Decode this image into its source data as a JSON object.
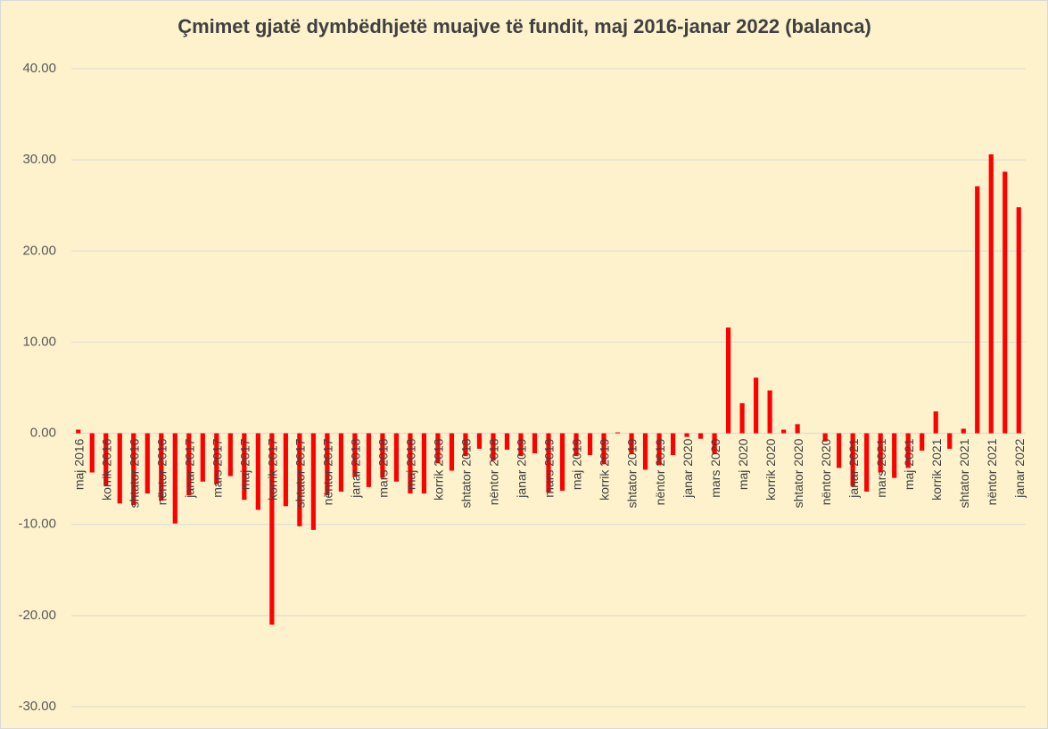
{
  "chart_data": {
    "type": "bar",
    "title": "Çmimet gjatë dymbëdhjetë muajve të fundit, maj 2016-janar 2022 (balanca)",
    "categories": [
      "maj 2016",
      null,
      "korrik 2016",
      null,
      "shtator 2016",
      null,
      "nëntor 2016",
      null,
      "janar 2017",
      null,
      "mars 2017",
      null,
      "maj 2017",
      null,
      "korrik 2017",
      null,
      "shtator 2017",
      null,
      "nëntor 2017",
      null,
      "janar 2018",
      null,
      "mars 2018",
      null,
      "maj 2018",
      null,
      "korrik 2018",
      null,
      "shtator 2018",
      null,
      "nëntor 2018",
      null,
      "janar 2019",
      null,
      "mars 2019",
      null,
      "maj 2019",
      null,
      "korrik 2019",
      null,
      "shtator 2019",
      null,
      "nëntor 2019",
      null,
      "janar 2020",
      null,
      "mars 2020",
      null,
      "maj 2020",
      null,
      "korrik 2020",
      null,
      "shtator 2020",
      null,
      "nëntor 2020",
      null,
      "janar 2021",
      null,
      "mars 2021",
      null,
      "maj 2021",
      null,
      "korrik 2021",
      null,
      "shtator 2021",
      null,
      "nëntor 2021",
      null,
      "janar 2022"
    ],
    "values": [
      0.4,
      -4.3,
      -5.8,
      -7.7,
      -7.9,
      -6.6,
      -7.4,
      -9.9,
      -6.8,
      -5.3,
      -5.6,
      -4.7,
      -7.3,
      -8.4,
      -21.0,
      -8.0,
      -10.2,
      -10.6,
      -6.8,
      -6.4,
      -4.8,
      -5.9,
      -4.9,
      -5.3,
      -6.6,
      -6.6,
      -3.3,
      -4.1,
      -2.5,
      -1.7,
      -3.0,
      -1.8,
      -2.5,
      -2.2,
      -6.5,
      -6.3,
      -2.5,
      -2.4,
      -3.4,
      0.1,
      -2.3,
      -4.0,
      -3.5,
      -2.4,
      -0.4,
      -0.6,
      -2.3,
      11.6,
      3.3,
      6.1,
      4.7,
      0.4,
      1.0,
      0,
      -0.9,
      -3.8,
      -5.8,
      -6.4,
      -4.3,
      -4.9,
      -3.8,
      -1.9,
      2.4,
      -1.7,
      0.5,
      27.1,
      30.6,
      28.7,
      24.8
    ],
    "color": "#ff0000",
    "ylim": [
      -30,
      40
    ],
    "yticks": [
      {
        "value": -30,
        "label": "-30.00"
      },
      {
        "value": -20,
        "label": "-20.00"
      },
      {
        "value": -10,
        "label": "-10.00"
      },
      {
        "value": 0,
        "label": "0.00"
      },
      {
        "value": 10,
        "label": "10.00"
      },
      {
        "value": 20,
        "label": "20.00"
      },
      {
        "value": 30,
        "label": "30.00"
      },
      {
        "value": 40,
        "label": "40.00"
      }
    ],
    "grid": true
  }
}
